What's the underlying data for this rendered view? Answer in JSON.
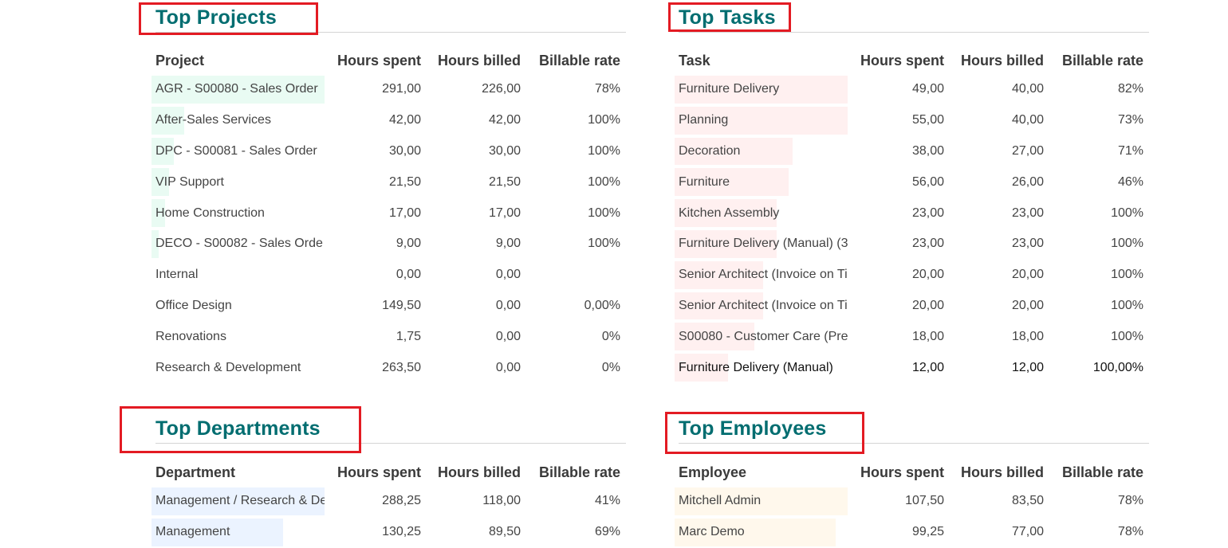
{
  "projects": {
    "title": "Top Projects",
    "headers": [
      "Project",
      "Hours spent",
      "Hours billed",
      "Billable rate"
    ],
    "rows": [
      {
        "name": "AGR - S00080 - Sales Order",
        "spent": "291,00",
        "billed": "226,00",
        "rate": "78%",
        "bar": 1.0
      },
      {
        "name": "After-Sales Services",
        "spent": "42,00",
        "billed": "42,00",
        "rate": "100%",
        "bar": 0.19
      },
      {
        "name": "DPC - S00081 - Sales Order",
        "spent": "30,00",
        "billed": "30,00",
        "rate": "100%",
        "bar": 0.13
      },
      {
        "name": "VIP Support",
        "spent": "21,50",
        "billed": "21,50",
        "rate": "100%",
        "bar": 0.1
      },
      {
        "name": "Home Construction",
        "spent": "17,00",
        "billed": "17,00",
        "rate": "100%",
        "bar": 0.08
      },
      {
        "name": "DECO - S00082 - Sales Orde",
        "spent": "9,00",
        "billed": "9,00",
        "rate": "100%",
        "bar": 0.04
      },
      {
        "name": "Internal",
        "spent": "0,00",
        "billed": "0,00",
        "rate": "",
        "bar": 0
      },
      {
        "name": "Office Design",
        "spent": "149,50",
        "billed": "0,00",
        "rate": "0,00%",
        "bar": 0
      },
      {
        "name": "Renovations",
        "spent": "1,75",
        "billed": "0,00",
        "rate": "0%",
        "bar": 0
      },
      {
        "name": "Research & Development",
        "spent": "263,50",
        "billed": "0,00",
        "rate": "0%",
        "bar": 0
      }
    ]
  },
  "tasks": {
    "title": "Top Tasks",
    "headers": [
      "Task",
      "Hours spent",
      "Hours billed",
      "Billable rate"
    ],
    "rows": [
      {
        "name": "Furniture Delivery",
        "spent": "49,00",
        "billed": "40,00",
        "rate": "82%",
        "bar": 1.0
      },
      {
        "name": "Planning",
        "spent": "55,00",
        "billed": "40,00",
        "rate": "73%",
        "bar": 1.0
      },
      {
        "name": "Decoration",
        "spent": "38,00",
        "billed": "27,00",
        "rate": "71%",
        "bar": 0.68
      },
      {
        "name": "Furniture",
        "spent": "56,00",
        "billed": "26,00",
        "rate": "46%",
        "bar": 0.66
      },
      {
        "name": "Kitchen Assembly",
        "spent": "23,00",
        "billed": "23,00",
        "rate": "100%",
        "bar": 0.59
      },
      {
        "name": "Furniture Delivery (Manual)  (3",
        "spent": "23,00",
        "billed": "23,00",
        "rate": "100%",
        "bar": 0.59
      },
      {
        "name": "Senior Architect (Invoice on Ti",
        "spent": "20,00",
        "billed": "20,00",
        "rate": "100%",
        "bar": 0.51
      },
      {
        "name": "Senior Architect (Invoice on Ti",
        "spent": "20,00",
        "billed": "20,00",
        "rate": "100%",
        "bar": 0.51
      },
      {
        "name": "S00080 - Customer Care (Pre",
        "spent": "18,00",
        "billed": "18,00",
        "rate": "100%",
        "bar": 0.46
      },
      {
        "name": "Furniture Delivery (Manual)",
        "spent": "12,00",
        "billed": "12,00",
        "rate": "100,00%",
        "bar": 0.31
      }
    ]
  },
  "departments": {
    "title": "Top Departments",
    "headers": [
      "Department",
      "Hours spent",
      "Hours billed",
      "Billable rate"
    ],
    "rows": [
      {
        "name": "Management / Research & De",
        "spent": "288,25",
        "billed": "118,00",
        "rate": "41%",
        "bar": 1.0
      },
      {
        "name": "Management",
        "spent": "130,25",
        "billed": "89,50",
        "rate": "69%",
        "bar": 0.76
      }
    ]
  },
  "employees": {
    "title": "Top Employees",
    "headers": [
      "Employee",
      "Hours spent",
      "Hours billed",
      "Billable rate"
    ],
    "rows": [
      {
        "name": "Mitchell Admin",
        "spent": "107,50",
        "billed": "83,50",
        "rate": "78%",
        "bar": 1.0
      },
      {
        "name": "Marc Demo",
        "spent": "99,25",
        "billed": "77,00",
        "rate": "78%",
        "bar": 0.93
      }
    ]
  }
}
